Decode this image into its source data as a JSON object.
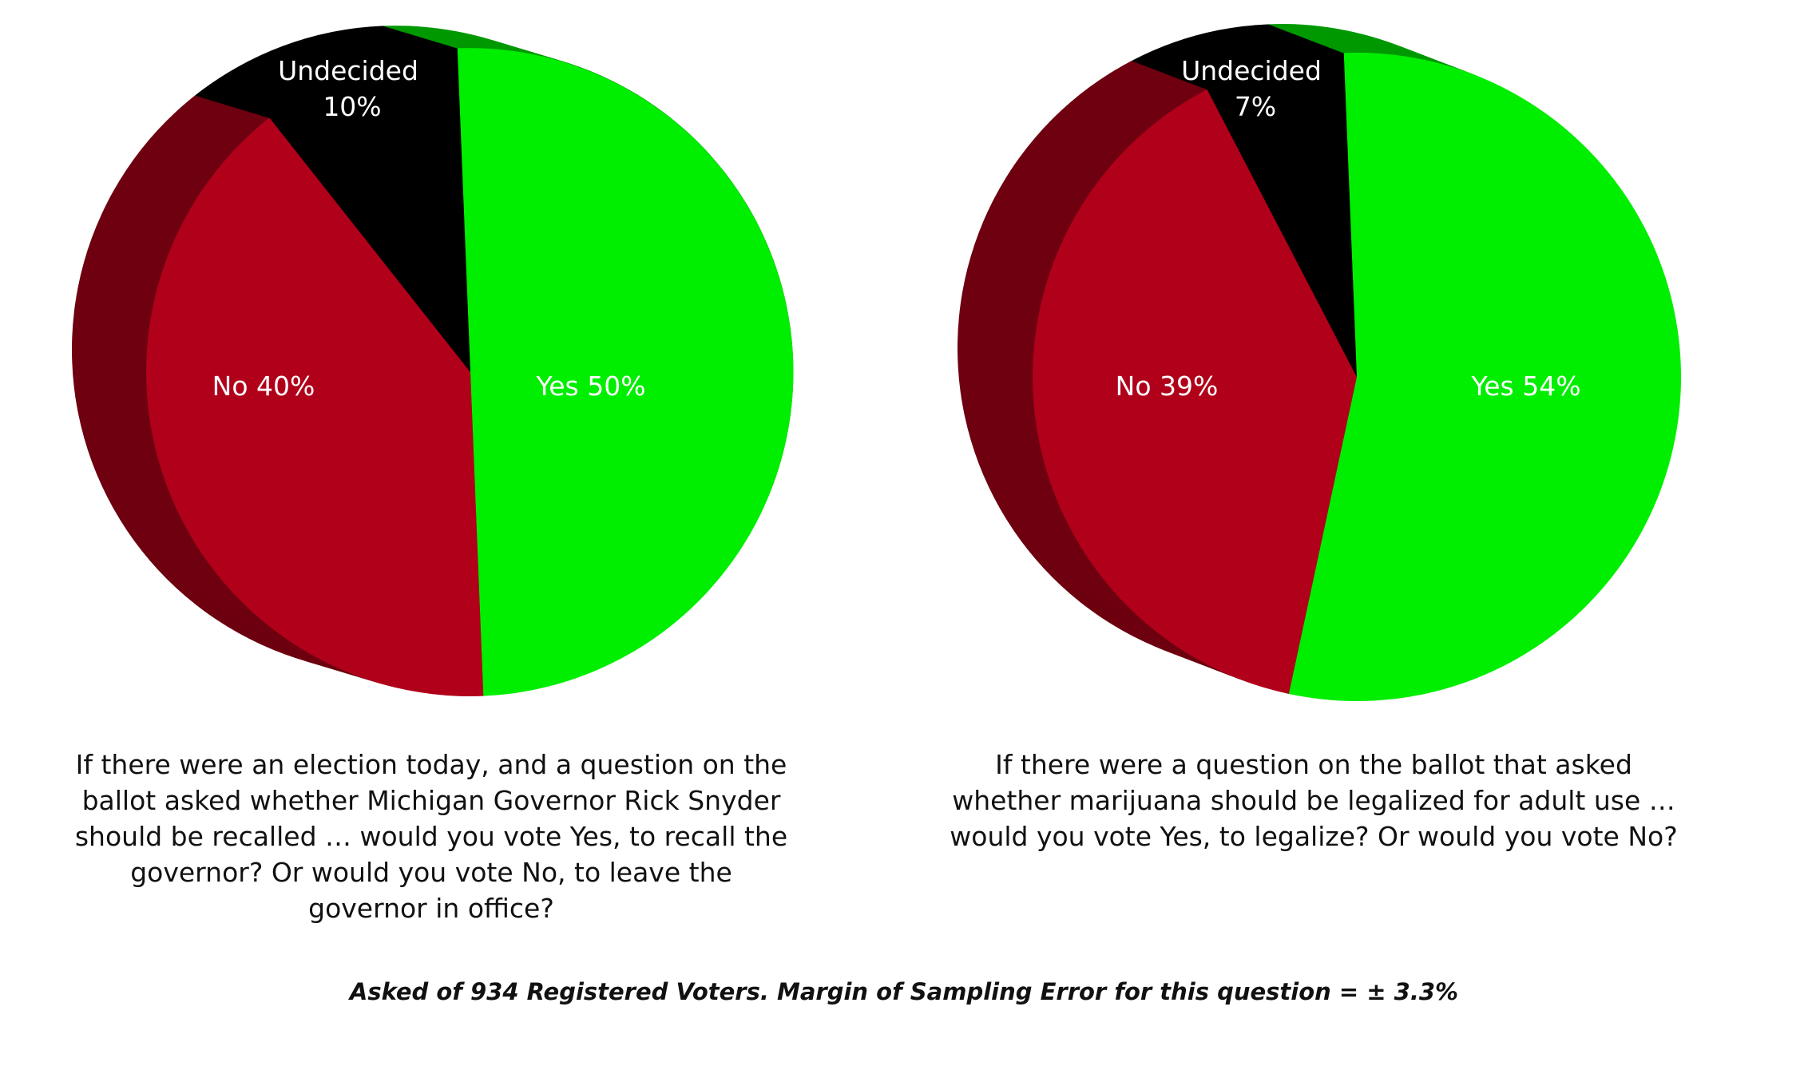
{
  "colors": {
    "yes": "#00ee00",
    "yes_side": "#009900",
    "no": "#b0001a",
    "no_side": "#6e0010",
    "undecided": "#000000",
    "label": "#ffffff"
  },
  "chart_data": [
    {
      "type": "pie",
      "slices": [
        {
          "label": "Yes",
          "value": 50,
          "color": "#00ee00"
        },
        {
          "label": "No",
          "value": 40,
          "color": "#b0001a"
        },
        {
          "label": "Undecided",
          "value": 10,
          "color": "#000000"
        }
      ],
      "labels": {
        "yes": "Yes 50%",
        "no": "No 40%",
        "undecided_name": "Undecided",
        "undecided_pct": "10%"
      },
      "caption": "If there were an election today, and a question on the ballot asked whether Michigan Governor Rick Snyder should be recalled … would you vote Yes, to recall the governor? Or would you vote No, to leave the governor in office?"
    },
    {
      "type": "pie",
      "slices": [
        {
          "label": "Yes",
          "value": 54,
          "color": "#00ee00"
        },
        {
          "label": "No",
          "value": 39,
          "color": "#b0001a"
        },
        {
          "label": "Undecided",
          "value": 7,
          "color": "#000000"
        }
      ],
      "labels": {
        "yes": "Yes 54%",
        "no": "No 39%",
        "undecided_name": "Undecided",
        "undecided_pct": "7%"
      },
      "caption": "If there were a question on the ballot that asked whether marijuana should be legalized for adult use … would you vote Yes, to legalize? Or would you vote No?"
    }
  ],
  "footnote": "Asked of 934 Registered Voters. Margin of Sampling Error for this question = ± 3.3%"
}
